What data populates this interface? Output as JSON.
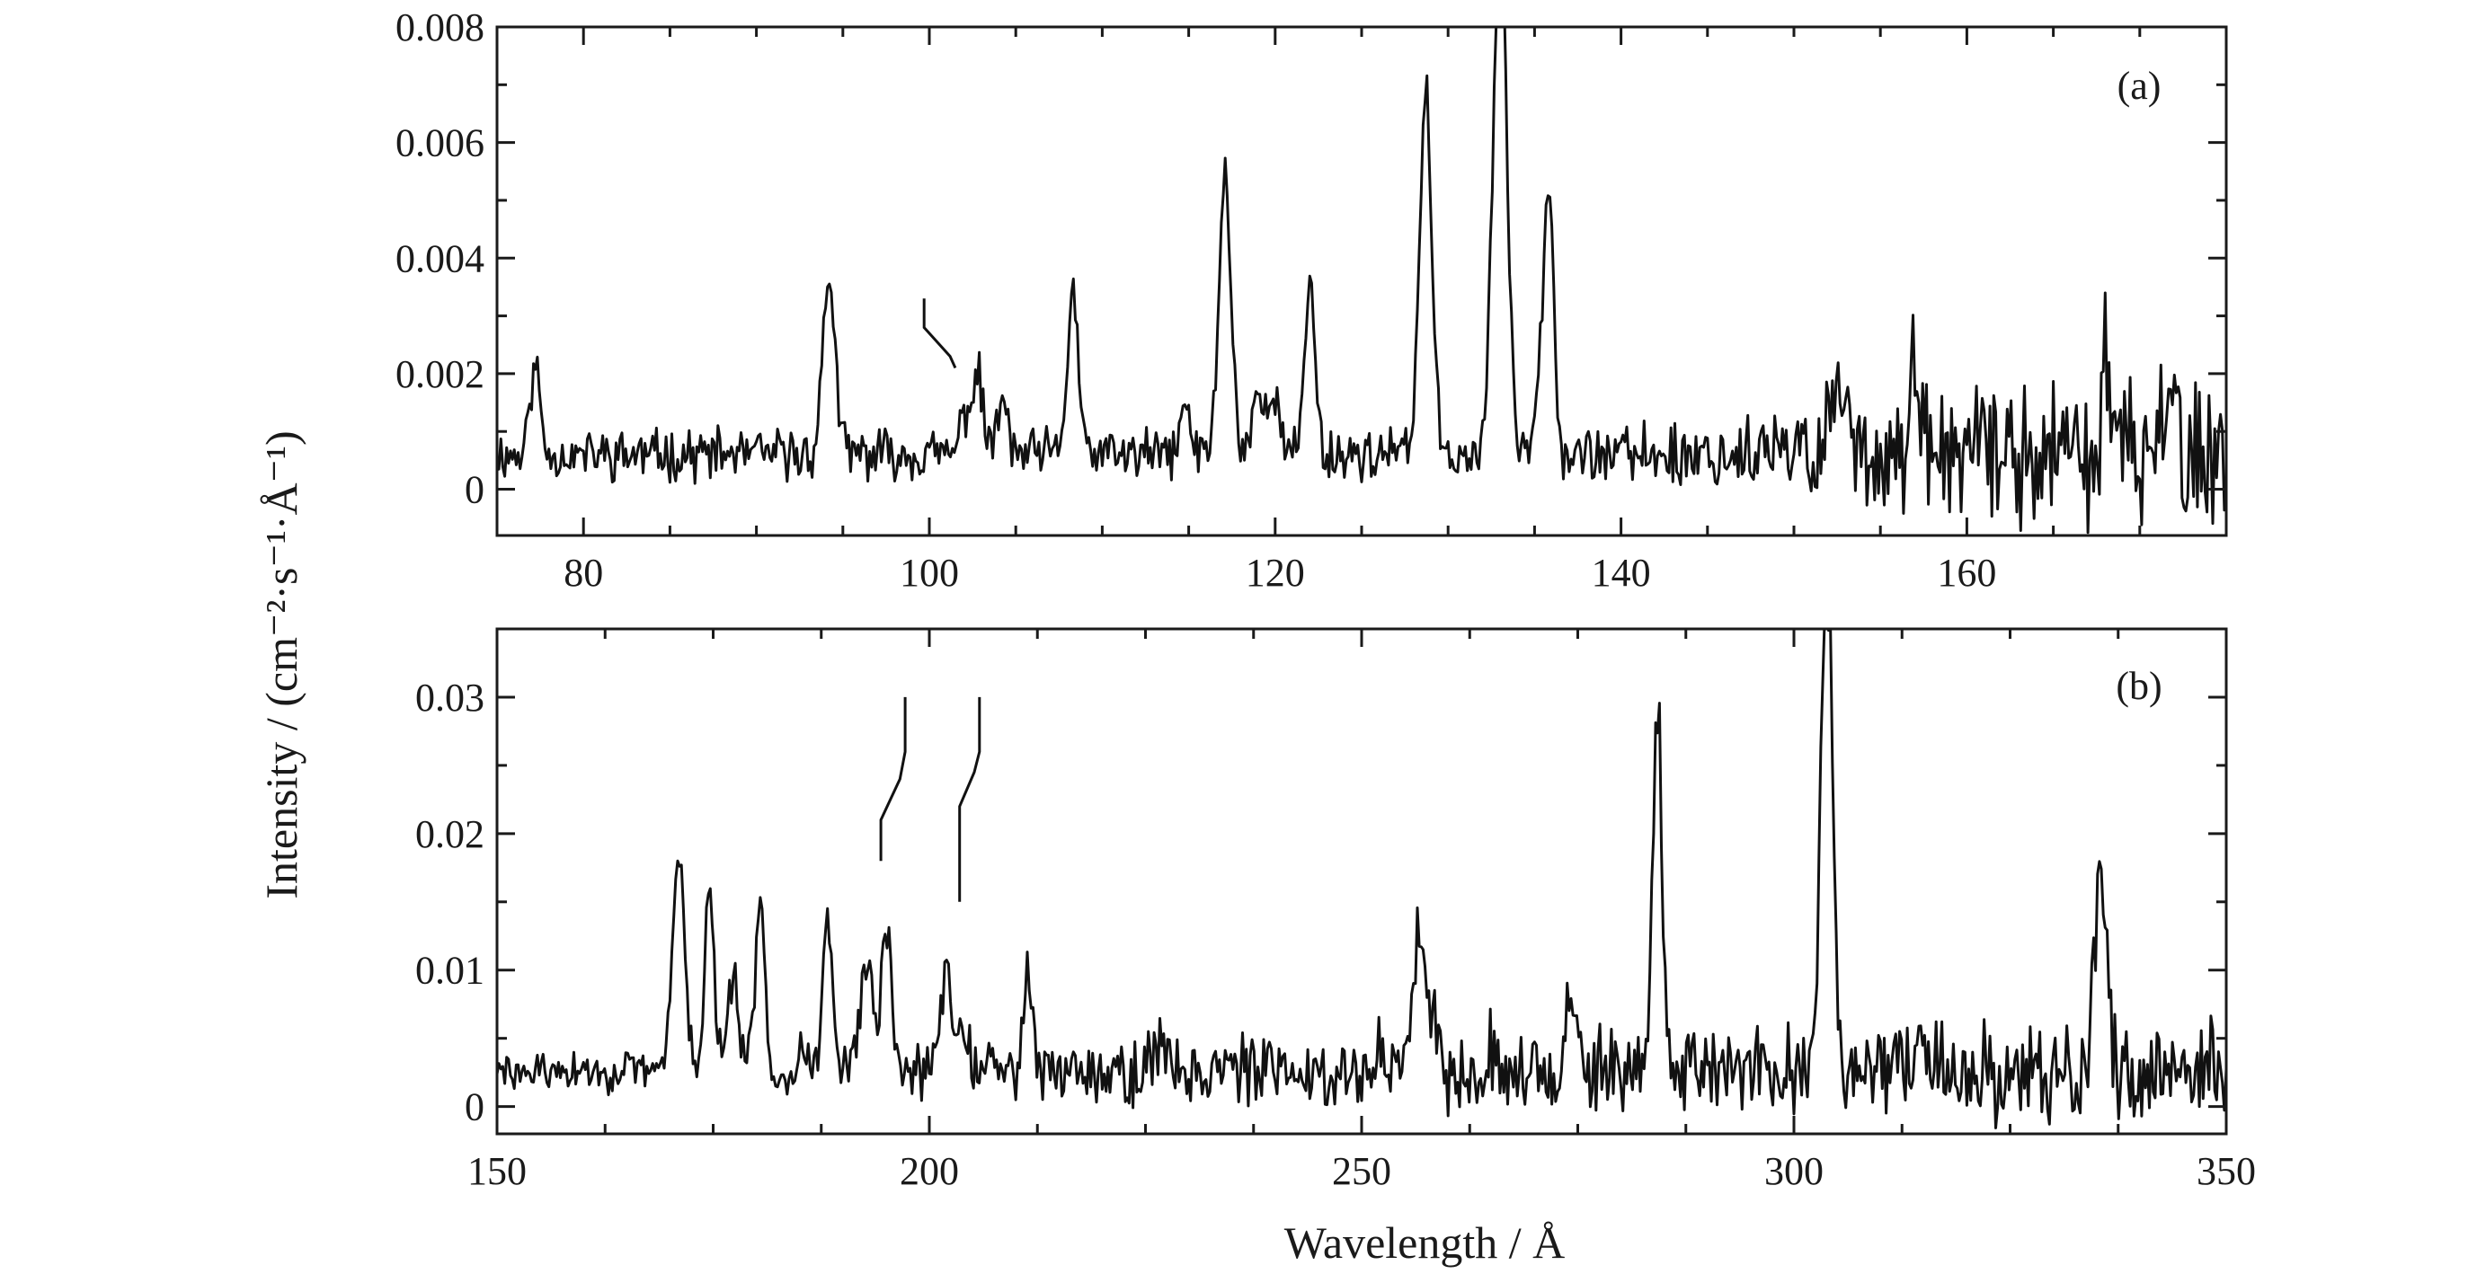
{
  "chart_data": [
    {
      "type": "line",
      "panel_label": "(a)",
      "xlim": [
        75,
        175
      ],
      "ylim": [
        -0.0008,
        0.008
      ],
      "x_ticks": [
        80,
        100,
        120,
        140,
        160
      ],
      "x_tick_labels": [
        "80",
        "100",
        "120",
        "140",
        "160"
      ],
      "y_ticks": [
        0,
        0.002,
        0.004,
        0.006,
        0.008
      ],
      "y_tick_labels": [
        "0",
        "0.002",
        "0.004",
        "0.006",
        "0.008"
      ],
      "baseline": 0.0006,
      "peaks": [
        {
          "x": 77.2,
          "y": 0.0021,
          "w": 0.3
        },
        {
          "x": 94.2,
          "y": 0.0037,
          "w": 0.35
        },
        {
          "x": 102.1,
          "y": 0.0013,
          "w": 0.3
        },
        {
          "x": 102.8,
          "y": 0.0019,
          "w": 0.3
        },
        {
          "x": 104.2,
          "y": 0.0015,
          "w": 0.3
        },
        {
          "x": 108.3,
          "y": 0.0035,
          "w": 0.3
        },
        {
          "x": 114.8,
          "y": 0.0014,
          "w": 0.3
        },
        {
          "x": 117.1,
          "y": 0.0054,
          "w": 0.35
        },
        {
          "x": 118.9,
          "y": 0.0015,
          "w": 0.3
        },
        {
          "x": 119.8,
          "y": 0.0018,
          "w": 0.35
        },
        {
          "x": 122.0,
          "y": 0.0036,
          "w": 0.3
        },
        {
          "x": 128.7,
          "y": 0.0069,
          "w": 0.35
        },
        {
          "x": 133.0,
          "y": 0.0095,
          "w": 0.4
        },
        {
          "x": 135.1,
          "y": 0.0014,
          "w": 0.3
        },
        {
          "x": 135.8,
          "y": 0.0054,
          "w": 0.3
        },
        {
          "x": 152.6,
          "y": 0.0019,
          "w": 0.5
        },
        {
          "x": 157.0,
          "y": 0.0023,
          "w": 0.2
        },
        {
          "x": 168.0,
          "y": 0.0024,
          "w": 0.2
        },
        {
          "x": 172.0,
          "y": 0.0031,
          "w": 0.2
        }
      ],
      "markers": [
        {
          "x": [
            99.7,
            99.7,
            101.2,
            101.5
          ],
          "y": [
            0.0033,
            0.0028,
            0.0023,
            0.0021
          ]
        }
      ]
    },
    {
      "type": "line",
      "panel_label": "(b)",
      "xlim": [
        150,
        350
      ],
      "ylim": [
        -0.002,
        0.035
      ],
      "x_ticks": [
        150,
        200,
        250,
        300,
        350
      ],
      "x_tick_labels": [
        "150",
        "200",
        "250",
        "300",
        "350"
      ],
      "y_ticks": [
        0,
        0.01,
        0.02,
        0.03
      ],
      "y_tick_labels": [
        "0",
        "0.01",
        "0.02",
        "0.03"
      ],
      "baseline": 0.0025,
      "peaks": [
        {
          "x": 171.0,
          "y": 0.019,
          "w": 0.7
        },
        {
          "x": 174.6,
          "y": 0.0155,
          "w": 0.55
        },
        {
          "x": 177.3,
          "y": 0.0098,
          "w": 0.55
        },
        {
          "x": 180.4,
          "y": 0.014,
          "w": 0.6
        },
        {
          "x": 185.2,
          "y": 0.0045,
          "w": 0.6
        },
        {
          "x": 188.2,
          "y": 0.0135,
          "w": 0.55
        },
        {
          "x": 191.0,
          "y": 0.004,
          "w": 0.6
        },
        {
          "x": 192.8,
          "y": 0.0095,
          "w": 0.8
        },
        {
          "x": 195.1,
          "y": 0.0124,
          "w": 0.6
        },
        {
          "x": 202.0,
          "y": 0.0092,
          "w": 0.8
        },
        {
          "x": 204.2,
          "y": 0.0055,
          "w": 0.55
        },
        {
          "x": 211.3,
          "y": 0.0098,
          "w": 0.55
        },
        {
          "x": 217.0,
          "y": 0.0035,
          "w": 0.8
        },
        {
          "x": 227.0,
          "y": 0.0045,
          "w": 1.0
        },
        {
          "x": 234.0,
          "y": 0.0035,
          "w": 1.0
        },
        {
          "x": 252.0,
          "y": 0.004,
          "w": 0.6
        },
        {
          "x": 256.7,
          "y": 0.0143,
          "w": 0.7
        },
        {
          "x": 258.5,
          "y": 0.006,
          "w": 0.6
        },
        {
          "x": 264.8,
          "y": 0.0045,
          "w": 0.6
        },
        {
          "x": 270.5,
          "y": 0.0032,
          "w": 0.6
        },
        {
          "x": 274.2,
          "y": 0.008,
          "w": 0.5
        },
        {
          "x": 284.2,
          "y": 0.0298,
          "w": 0.55
        },
        {
          "x": 303.8,
          "y": 0.038,
          "w": 0.7
        },
        {
          "x": 315.0,
          "y": 0.0035,
          "w": 1.2
        },
        {
          "x": 320.0,
          "y": 0.003,
          "w": 0.6
        },
        {
          "x": 335.4,
          "y": 0.0172,
          "w": 0.65
        },
        {
          "x": 343.0,
          "y": 0.0035,
          "w": 0.6
        }
      ],
      "markers": [
        {
          "x": [
            197.2,
            197.2,
            196.6,
            194.4,
            194.4
          ],
          "y": [
            0.03,
            0.026,
            0.024,
            0.021,
            0.018
          ]
        },
        {
          "x": [
            205.8,
            205.8,
            205.2,
            203.5,
            203.5
          ],
          "y": [
            0.03,
            0.026,
            0.0245,
            0.022,
            0.015
          ]
        }
      ]
    }
  ],
  "axis_titles": {
    "y": "Intensity / (cm⁻²·s⁻¹·Å⁻¹)",
    "x": "Wavelength / Å"
  }
}
